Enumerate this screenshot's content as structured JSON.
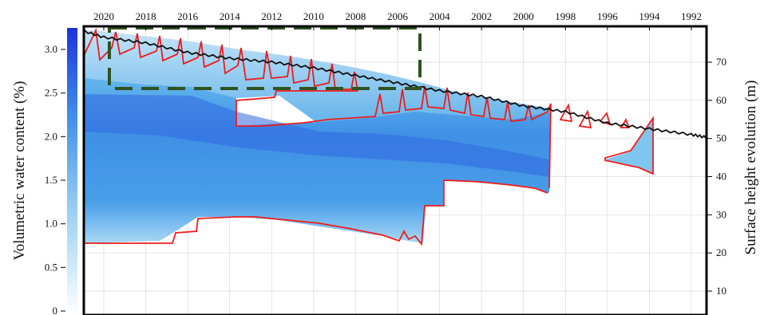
{
  "chart_data": {
    "type": "area",
    "title": "",
    "top_axis": {
      "ticks": [
        "2020",
        "2018",
        "2016",
        "2014",
        "2012",
        "2010",
        "2008",
        "2006",
        "2004",
        "2002",
        "2000",
        "1998",
        "1996",
        "1994",
        "1992"
      ]
    },
    "left_axis": {
      "label": "Volumetric water content (%)",
      "ticks": [
        "0",
        "0.5",
        "1.0",
        "1.5",
        "2.0",
        "2.5",
        "3.0"
      ],
      "range": [
        0,
        3.3
      ]
    },
    "right_axis": {
      "label": "Surface height evolution (m)",
      "ticks": [
        "10",
        "20",
        "30",
        "40",
        "50",
        "60",
        "70"
      ],
      "range": [
        0,
        80
      ]
    },
    "colorbar": {
      "min": 0,
      "max": 3.3,
      "colors": [
        "#ffffff",
        "#1a3ad8"
      ]
    },
    "surface_height": {
      "years": [
        2021.5,
        2020,
        2018,
        2016,
        2014,
        2012,
        2010,
        2008,
        2006,
        2004,
        2002,
        2000,
        1998,
        1996,
        1994,
        1992,
        1991
      ],
      "height_m": [
        79,
        76.5,
        75,
        72.5,
        71,
        70,
        68.5,
        66.5,
        64.5,
        62.5,
        61,
        58.5,
        57,
        54,
        52.5,
        51,
        50
      ]
    },
    "wet_zone": {
      "upper_boundary": {
        "years": [
          2020,
          2018,
          2016,
          2014.2,
          2014.2,
          2012,
          2010,
          2008,
          2006,
          2004,
          2002,
          2000.5
        ],
        "height_m": [
          66,
          62.5,
          62,
          61.5,
          53,
          53,
          54,
          55,
          57,
          56,
          53,
          50
        ]
      },
      "lower_boundary": {
        "years": [
          2021.5,
          2018.5,
          2015.5,
          2013,
          2011,
          2009,
          2007,
          2005,
          2004.5,
          2004.5,
          2002,
          2000.3
        ],
        "height_m": [
          22,
          22,
          30,
          31,
          30,
          29,
          28,
          22,
          22,
          39,
          39,
          37
        ]
      },
      "isolated_lens_1994": {
        "years": [
          1996,
          1994.3
        ],
        "height_m": [
          40,
          50
        ]
      }
    },
    "colors": {
      "wet_boundary": "#ee1c1c",
      "surface_line": "#111111",
      "highlight_box": "#2f5320"
    }
  }
}
